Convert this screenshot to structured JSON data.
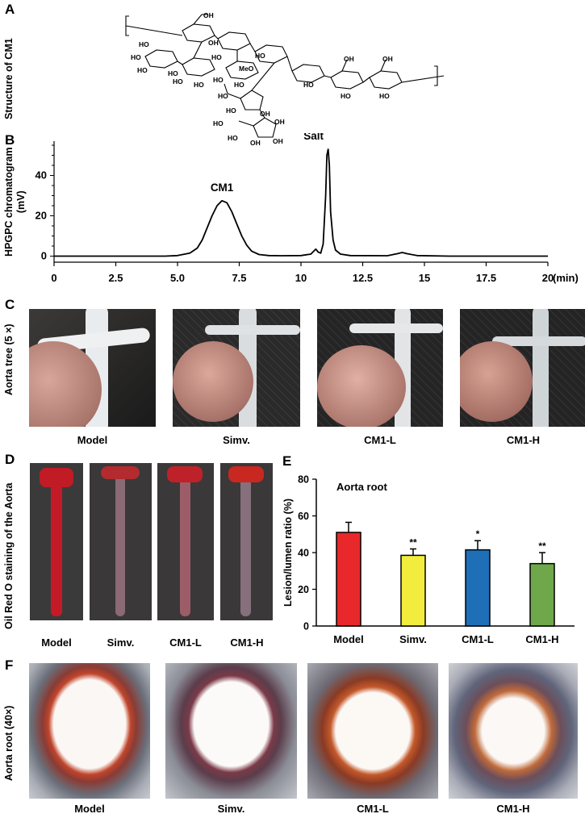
{
  "panels": {
    "A": {
      "letter": "A",
      "ylabel": "Structure of CM1"
    },
    "B": {
      "letter": "B",
      "ylabel_line1": "HPGPC chromatogram",
      "ylabel_line2": "(mV)"
    },
    "C": {
      "letter": "C",
      "ylabel": "Aorta tree (5 ×)",
      "captions": [
        "Model",
        "Simv.",
        "CM1-L",
        "CM1-H"
      ]
    },
    "D": {
      "letter": "D",
      "ylabel": "Oil Red O staining of the Aorta",
      "captions": [
        "Model",
        "Simv.",
        "CM1-L",
        "CM1-H"
      ]
    },
    "E": {
      "letter": "E"
    },
    "F": {
      "letter": "F",
      "ylabel": "Aorta root  (40×)",
      "captions": [
        "Model",
        "Simv.",
        "CM1-L",
        "CM1-H"
      ]
    }
  },
  "structure_labels": {
    "oh": "OH",
    "ho": "HO",
    "meo": "MeO"
  },
  "chart_data": [
    {
      "type": "line",
      "panel": "B",
      "xlabel": "(min)",
      "ylabel": "HPGPC chromatogram (mV)",
      "xlim": [
        0,
        20
      ],
      "ylim": [
        -3,
        57
      ],
      "xticks": [
        "0",
        "2.5",
        "5.0",
        "7.5",
        "10",
        "12.5",
        "15",
        "17.5",
        "20"
      ],
      "xtick_values": [
        0,
        2.5,
        5,
        7.5,
        10,
        12.5,
        15,
        17.5,
        20
      ],
      "yticks": [
        "0",
        "20",
        "40"
      ],
      "ytick_values": [
        0,
        20,
        40
      ],
      "annotations": [
        {
          "text": "CM1",
          "x": 6.8,
          "y": 27.5
        },
        {
          "text": "Salt",
          "x": 11.1,
          "y": 53
        }
      ],
      "series": [
        {
          "x": [
            0,
            4.5,
            5.0,
            5.5,
            5.8,
            6.0,
            6.2,
            6.4,
            6.6,
            6.8,
            7.0,
            7.2,
            7.4,
            7.6,
            7.8,
            8.0,
            8.3,
            8.7,
            9.2,
            10.0,
            10.4,
            10.6,
            10.7,
            10.8,
            10.9,
            11.0,
            11.05,
            11.1,
            11.15,
            11.2,
            11.3,
            11.4,
            11.6,
            12.0,
            13.5,
            13.9,
            14.1,
            14.3,
            14.7,
            16,
            20
          ],
          "y": [
            0,
            0,
            0.3,
            1.5,
            4,
            8,
            14,
            20,
            25,
            27.5,
            26.5,
            22,
            16,
            10,
            5.5,
            2.5,
            0.8,
            0.3,
            0.2,
            0.3,
            1,
            3.5,
            2,
            1.5,
            6,
            30,
            50,
            53,
            45,
            22,
            8,
            3,
            1,
            0.3,
            0.2,
            1.2,
            1.8,
            1.2,
            0.3,
            0,
            0
          ]
        }
      ]
    },
    {
      "type": "bar",
      "panel": "E",
      "title": "Aorta root",
      "ylabel": "Lesion/lumen ratio (%)",
      "ylim": [
        0,
        80
      ],
      "yticks": [
        "0",
        "20",
        "40",
        "60",
        "80"
      ],
      "ytick_values": [
        0,
        20,
        40,
        60,
        80
      ],
      "categories": [
        "Model",
        "Simv.",
        "CM1-L",
        "CM1-H"
      ],
      "values": [
        51,
        38.5,
        41.5,
        34
      ],
      "errors": [
        5.5,
        3.5,
        5,
        6
      ],
      "significance": [
        "",
        "**",
        "*",
        "**"
      ],
      "colors": [
        "#e8282b",
        "#f2ec3c",
        "#1e6fb7",
        "#6ea84b"
      ]
    }
  ]
}
